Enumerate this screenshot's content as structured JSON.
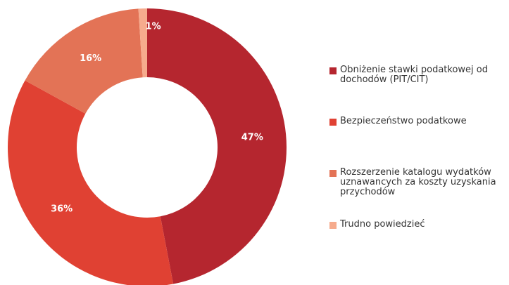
{
  "chart_data": {
    "type": "pie",
    "categories": [
      "Obniżenie stawki podatkowej od dochodów (PIT/CIT)",
      "Bezpieczeństwo podatkowe",
      "Rozszerzenie katalogu  wydatków uznawancych za koszty uzyskania przychodów",
      "Trudno powiedzieć"
    ],
    "values": [
      47,
      36,
      16,
      1
    ],
    "value_labels": [
      "47%",
      "36%",
      "16%",
      "1%"
    ],
    "colors": [
      "#b5262f",
      "#e04133",
      "#e37356",
      "#f6ab8d"
    ],
    "legend": "right"
  }
}
